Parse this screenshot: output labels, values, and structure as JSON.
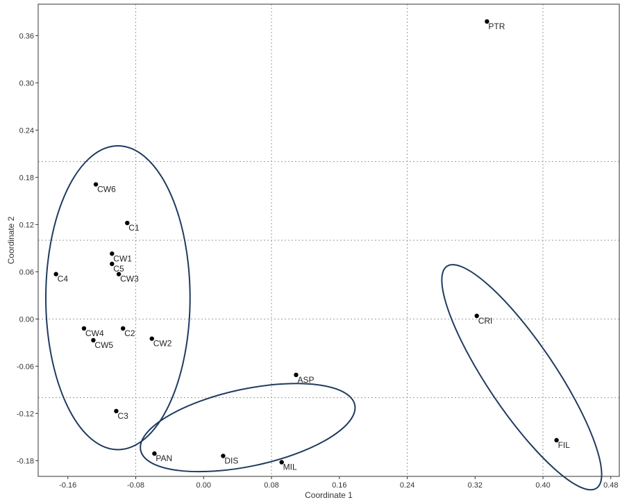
{
  "chart_data": {
    "type": "scatter",
    "title": "",
    "xlabel": "Coordinate 1",
    "ylabel": "Coordinate 2",
    "xlim": [
      -0.195,
      0.49
    ],
    "ylim": [
      -0.2,
      0.4
    ],
    "x_ticks": [
      -0.16,
      -0.08,
      0.0,
      0.08,
      0.16,
      0.24,
      0.32,
      0.4,
      0.48
    ],
    "x_tick_labels": [
      "-0.16",
      "-0.08",
      "0.00",
      "0.08",
      "0.16",
      "0.24",
      "0.32",
      "0.40",
      "0.48"
    ],
    "y_ticks": [
      -0.18,
      -0.12,
      -0.06,
      0.0,
      0.06,
      0.12,
      0.18,
      0.24,
      0.3,
      0.36
    ],
    "y_tick_labels": [
      "-0.18",
      "-0.12",
      "-0.06",
      "0.00",
      "0.06",
      "0.12",
      "0.18",
      "0.24",
      "0.30",
      "0.36"
    ],
    "grid": true,
    "point_color": "#000000",
    "ellipse_color": "#1f3a5f",
    "points": [
      {
        "label": "PTR",
        "x": 0.334,
        "y": 0.378
      },
      {
        "label": "CW6",
        "x": -0.127,
        "y": 0.171
      },
      {
        "label": "C1",
        "x": -0.09,
        "y": 0.122
      },
      {
        "label": "CW1",
        "x": -0.108,
        "y": 0.083
      },
      {
        "label": "C5",
        "x": -0.108,
        "y": 0.07
      },
      {
        "label": "CW3",
        "x": -0.1,
        "y": 0.057
      },
      {
        "label": "C4",
        "x": -0.174,
        "y": 0.057
      },
      {
        "label": "CW4",
        "x": -0.141,
        "y": -0.012
      },
      {
        "label": "C2",
        "x": -0.095,
        "y": -0.012
      },
      {
        "label": "CW5",
        "x": -0.13,
        "y": -0.027
      },
      {
        "label": "CW2",
        "x": -0.061,
        "y": -0.025
      },
      {
        "label": "ASP",
        "x": 0.109,
        "y": -0.071
      },
      {
        "label": "C3",
        "x": -0.103,
        "y": -0.117
      },
      {
        "label": "PAN",
        "x": -0.058,
        "y": -0.171
      },
      {
        "label": "DIS",
        "x": 0.023,
        "y": -0.174
      },
      {
        "label": "MIL",
        "x": 0.092,
        "y": -0.182
      },
      {
        "label": "CRI",
        "x": 0.322,
        "y": 0.004
      },
      {
        "label": "FIL",
        "x": 0.416,
        "y": -0.154
      }
    ],
    "ellipses": [
      {
        "cx": -0.101,
        "cy": 0.027,
        "rx": 0.085,
        "ry": 0.193,
        "angle": 0
      },
      {
        "cx": 0.052,
        "cy": -0.138,
        "rx": 0.129,
        "ry": 0.049,
        "angle": -12
      },
      {
        "cx": 0.375,
        "cy": -0.074,
        "rx": 0.04,
        "ry": 0.17,
        "angle": -34
      }
    ]
  }
}
